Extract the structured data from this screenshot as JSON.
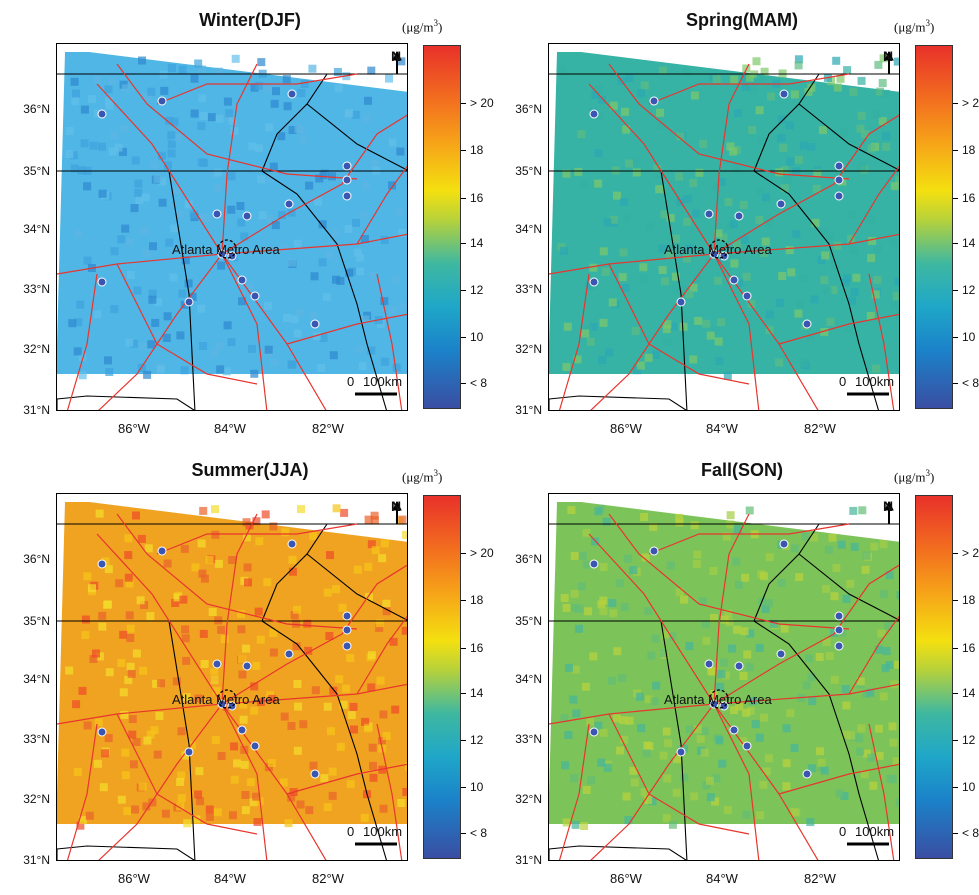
{
  "region_label": "Atlanta Metro Area",
  "unit_text": "(μg/m",
  "unit_sup": "3",
  "unit_close": ")",
  "latitude_labels": [
    "36°N",
    "35°N",
    "34°N",
    "33°N",
    "32°N",
    "31°N"
  ],
  "longitude_labels": [
    "86°W",
    "84°W",
    "82°W"
  ],
  "north_label": "N",
  "scale_bar": {
    "zero": "0",
    "distance": "100km"
  },
  "colorbar_ticks": [
    "> 20",
    "18",
    "16",
    "14",
    "12",
    "10",
    "< 8"
  ],
  "colors": {
    "winter": "#4fb6e6",
    "spring": "#37b3a5",
    "summer": "#f0a321",
    "fall": "#7cc35a",
    "roads": "#e8352e",
    "boundaries": "#000000",
    "interstate_shield": "#3a56b0"
  },
  "panels": [
    {
      "id": "winter",
      "title": "Winter(DJF)"
    },
    {
      "id": "spring",
      "title": "Spring(MAM)"
    },
    {
      "id": "summer",
      "title": "Summer(JJA)"
    },
    {
      "id": "fall",
      "title": "Fall(SON)"
    }
  ]
}
